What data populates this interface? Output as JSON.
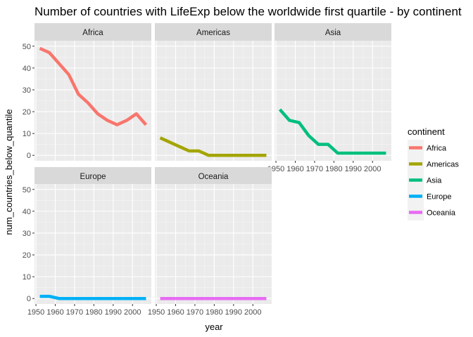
{
  "chart_data": {
    "type": "line",
    "title": "Number of countries with LifeExp below the worldwide first quartile - by continent",
    "xlabel": "year",
    "ylabel": "num_countries_below_quantile",
    "xlim": [
      1949.25,
      2009.75
    ],
    "ylim": [
      -2.5,
      52.5
    ],
    "x_ticks": [
      1950,
      1960,
      1970,
      1980,
      1990,
      2000
    ],
    "x_tick_labels": [
      "1950",
      "1960",
      "1970",
      "1980",
      "1990",
      "2000"
    ],
    "y_ticks": [
      0,
      10,
      20,
      30,
      40,
      50
    ],
    "y_tick_labels": [
      "0",
      "10",
      "20",
      "30",
      "40",
      "50"
    ],
    "x": [
      1952,
      1957,
      1962,
      1967,
      1972,
      1977,
      1982,
      1987,
      1992,
      1997,
      2002,
      2007
    ],
    "grid": true,
    "legend": {
      "title": "continent",
      "position": "right"
    },
    "series": [
      {
        "name": "Africa",
        "color": "#F8766D",
        "values": [
          49,
          47,
          42,
          37,
          28,
          24,
          19,
          16,
          14,
          16,
          19,
          14
        ]
      },
      {
        "name": "Americas",
        "color": "#A3A500",
        "values": [
          8,
          6,
          4,
          2,
          2,
          0,
          0,
          0,
          0,
          0,
          0,
          0
        ]
      },
      {
        "name": "Asia",
        "color": "#00BF7D",
        "values": [
          21,
          16,
          15,
          9,
          5,
          5,
          1,
          1,
          1,
          1,
          1,
          1
        ]
      },
      {
        "name": "Europe",
        "color": "#00B0F6",
        "values": [
          1,
          1,
          0,
          0,
          0,
          0,
          0,
          0,
          0,
          0,
          0,
          0
        ]
      },
      {
        "name": "Oceania",
        "color": "#E76BF3",
        "values": [
          0,
          0,
          0,
          0,
          0,
          0,
          0,
          0,
          0,
          0,
          0,
          0
        ]
      }
    ]
  }
}
